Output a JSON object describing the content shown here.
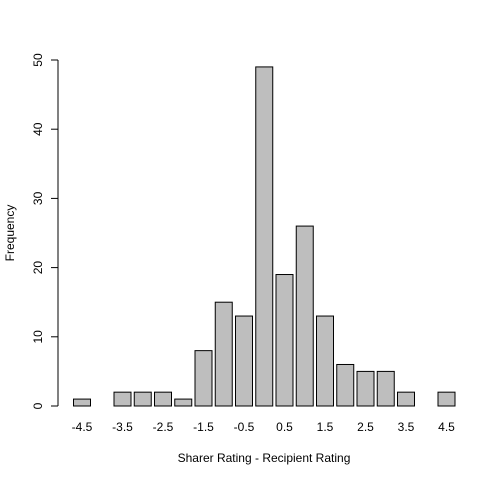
{
  "chart_data": {
    "type": "bar",
    "title": "",
    "xlabel": "Sharer Rating - Recipient Rating",
    "ylabel": "Frequency",
    "categories": [
      "-4.5",
      "-4",
      "-3.5",
      "-3",
      "-2.5",
      "-2",
      "-1.5",
      "-1",
      "-0.5",
      "0",
      "0.5",
      "1",
      "1.5",
      "2",
      "2.5",
      "3",
      "3.5",
      "4",
      "4.5"
    ],
    "values": [
      1,
      0,
      2,
      2,
      2,
      1,
      8,
      15,
      13,
      49,
      19,
      26,
      13,
      6,
      5,
      5,
      2,
      0,
      2
    ],
    "x_tick_labels": [
      "-4.5",
      "-3.5",
      "-2.5",
      "-1.5",
      "-0.5",
      "0.5",
      "1.5",
      "2.5",
      "3.5",
      "4.5"
    ],
    "y_ticks": [
      0,
      10,
      20,
      30,
      40,
      50
    ],
    "ylim": [
      0,
      50
    ],
    "grid": false,
    "bar_color": "#bebebe",
    "bar_border_color": "#000000"
  }
}
